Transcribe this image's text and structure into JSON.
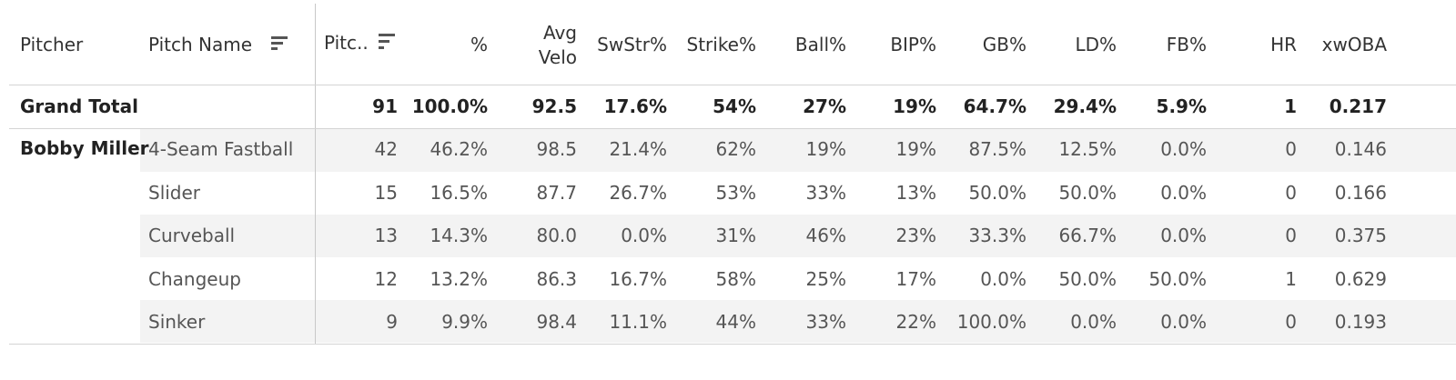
{
  "header": {
    "pitcher": "Pitcher",
    "pitch_name": "Pitch Name",
    "columns": [
      "Pitc..",
      "%",
      "Avg Velo",
      "SwStr%",
      "Strike%",
      "Ball%",
      "BIP%",
      "GB%",
      "LD%",
      "FB%",
      "HR",
      "xwOBA"
    ],
    "avg_velo_line1": "Avg",
    "avg_velo_line2": "Velo"
  },
  "grand_total": {
    "label": "Grand Total",
    "values": [
      "91",
      "100.0%",
      "92.5",
      "17.6%",
      "54%",
      "27%",
      "19%",
      "64.7%",
      "29.4%",
      "5.9%",
      "1",
      "0.217"
    ]
  },
  "pitcher_name": "Bobby Miller",
  "rows": [
    {
      "pitch": "4-Seam Fastball",
      "values": [
        "42",
        "46.2%",
        "98.5",
        "21.4%",
        "62%",
        "19%",
        "19%",
        "87.5%",
        "12.5%",
        "0.0%",
        "0",
        "0.146"
      ]
    },
    {
      "pitch": "Slider",
      "values": [
        "15",
        "16.5%",
        "87.7",
        "26.7%",
        "53%",
        "33%",
        "13%",
        "50.0%",
        "50.0%",
        "0.0%",
        "0",
        "0.166"
      ]
    },
    {
      "pitch": "Curveball",
      "values": [
        "13",
        "14.3%",
        "80.0",
        "0.0%",
        "31%",
        "46%",
        "23%",
        "33.3%",
        "66.7%",
        "0.0%",
        "0",
        "0.375"
      ]
    },
    {
      "pitch": "Changeup",
      "values": [
        "12",
        "13.2%",
        "86.3",
        "16.7%",
        "58%",
        "25%",
        "17%",
        "0.0%",
        "50.0%",
        "50.0%",
        "1",
        "0.629"
      ]
    },
    {
      "pitch": "Sinker",
      "values": [
        "9",
        "9.9%",
        "98.4",
        "11.1%",
        "44%",
        "33%",
        "22%",
        "100.0%",
        "0.0%",
        "0.0%",
        "0",
        "0.193"
      ]
    }
  ],
  "chart_data": {
    "type": "table",
    "columns": [
      "Pitcher",
      "Pitch Name",
      "Pitc..",
      "%",
      "Avg Velo",
      "SwStr%",
      "Strike%",
      "Ball%",
      "BIP%",
      "GB%",
      "LD%",
      "FB%",
      "HR",
      "xwOBA"
    ],
    "rows": [
      [
        "Grand Total",
        "",
        91,
        "100.0%",
        92.5,
        "17.6%",
        "54%",
        "27%",
        "19%",
        "64.7%",
        "29.4%",
        "5.9%",
        1,
        0.217
      ],
      [
        "Bobby Miller",
        "4-Seam Fastball",
        42,
        "46.2%",
        98.5,
        "21.4%",
        "62%",
        "19%",
        "19%",
        "87.5%",
        "12.5%",
        "0.0%",
        0,
        0.146
      ],
      [
        "Bobby Miller",
        "Slider",
        15,
        "16.5%",
        87.7,
        "26.7%",
        "53%",
        "33%",
        "13%",
        "50.0%",
        "50.0%",
        "0.0%",
        0,
        0.166
      ],
      [
        "Bobby Miller",
        "Curveball",
        13,
        "14.3%",
        80.0,
        "0.0%",
        "31%",
        "46%",
        "23%",
        "33.3%",
        "66.7%",
        "0.0%",
        0,
        0.375
      ],
      [
        "Bobby Miller",
        "Changeup",
        12,
        "13.2%",
        86.3,
        "16.7%",
        "58%",
        "25%",
        "17%",
        "0.0%",
        "50.0%",
        "50.0%",
        1,
        0.629
      ],
      [
        "Bobby Miller",
        "Sinker",
        9,
        "9.9%",
        98.4,
        "11.1%",
        "44%",
        "33%",
        "22%",
        "100.0%",
        "0.0%",
        "0.0%",
        0,
        0.193
      ]
    ]
  }
}
